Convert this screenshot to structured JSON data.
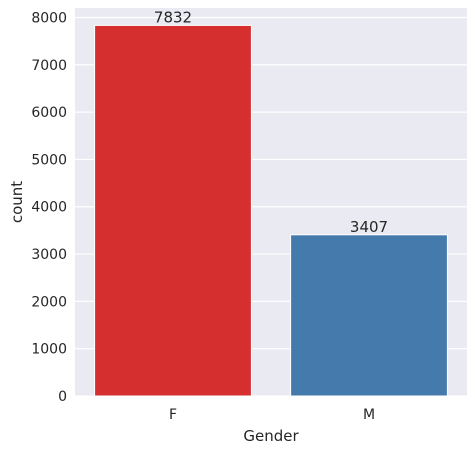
{
  "chart_data": {
    "type": "bar",
    "categories": [
      "F",
      "M"
    ],
    "values": [
      7832,
      3407
    ],
    "data_labels": [
      "7832",
      "3407"
    ],
    "xlabel": "Gender",
    "ylabel": "count",
    "ylim": [
      0,
      8200
    ],
    "yticks": [
      0,
      1000,
      2000,
      3000,
      4000,
      5000,
      6000,
      7000,
      8000
    ],
    "grid": true,
    "colors": [
      "#d62f30",
      "#457bac"
    ],
    "background": "#eaeaf2",
    "gridline_color": "#ffffff"
  }
}
